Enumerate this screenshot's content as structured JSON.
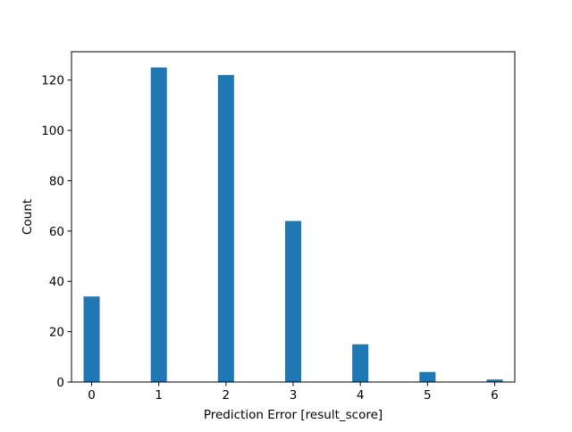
{
  "chart_data": {
    "type": "bar",
    "title": "",
    "xlabel": "Prediction Error [result_score]",
    "ylabel": "Count",
    "x": [
      0,
      1,
      2,
      3,
      4,
      5,
      6
    ],
    "values": [
      34,
      125,
      122,
      64,
      15,
      4,
      1
    ],
    "bar_width": 0.24,
    "xlim": [
      -0.3,
      6.3
    ],
    "ylim": [
      0,
      131.25
    ],
    "xticks": [
      0,
      1,
      2,
      3,
      4,
      5,
      6
    ],
    "xtick_labels": [
      "0",
      "1",
      "2",
      "3",
      "4",
      "5",
      "6"
    ],
    "yticks": [
      0,
      20,
      40,
      60,
      80,
      100,
      120
    ],
    "ytick_labels": [
      "0",
      "20",
      "40",
      "60",
      "80",
      "100",
      "120"
    ],
    "grid": false,
    "legend": "none",
    "bar_color": "#1f77b4"
  }
}
